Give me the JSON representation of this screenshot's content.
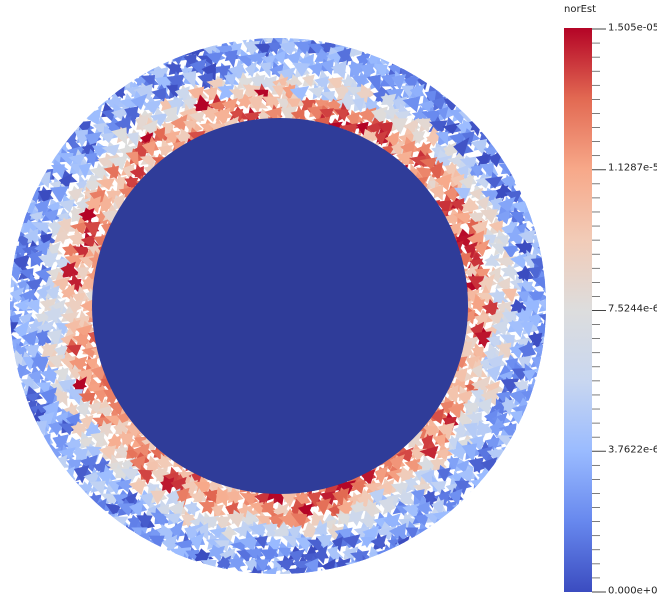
{
  "legend": {
    "title": "norEst",
    "labels": {
      "max": "1.505e-05",
      "t3": "1.1287e-5",
      "t2": "7.5244e-6",
      "t1": "3.7622e-6",
      "min": "0.000e+00"
    },
    "colormap": [
      "#3b4cc0",
      "#6788ee",
      "#9abbff",
      "#c9d7f0",
      "#dddddd",
      "#f2cbb7",
      "#f7a889",
      "#e26952",
      "#b40426"
    ]
  },
  "scene": {
    "field_name": "norEst",
    "range": [
      0,
      1.505e-05
    ],
    "inner_color": "#2f3c99"
  }
}
